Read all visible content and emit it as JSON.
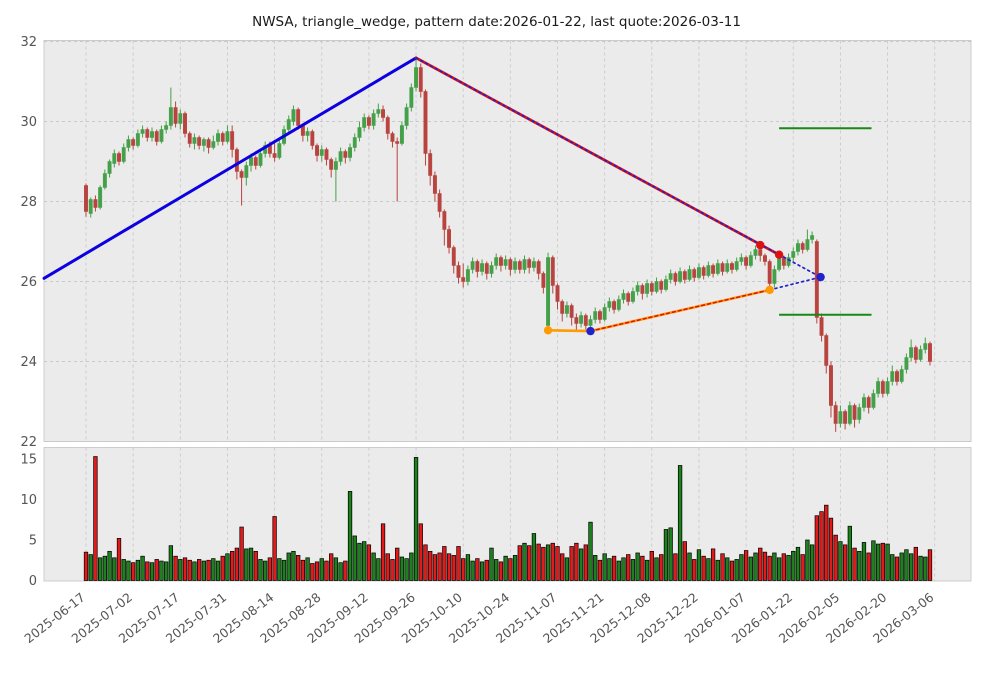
{
  "title": "NWSA, triangle_wedge, pattern date:2026-01-22, last quote:2026-03-11",
  "symbol": "NWSA",
  "pattern_name": "triangle_wedge",
  "pattern_date": "2026-01-22",
  "last_quote_date": "2026-03-11",
  "colors": {
    "figure_bg": "#ffffff",
    "panel_bg": "#ebebeb",
    "grid": "#c9c9c9",
    "panel_border": "#cccccc",
    "candle_up": "#44a049",
    "candle_down": "#b8433f",
    "volume_up": "#1c801c",
    "volume_down": "#e41a1a",
    "volume_edge": "#000000",
    "trend_blue": "#0d00e0",
    "wedge_red": "#dd1111",
    "wedge_orange": "#ff9a00",
    "projection_blue": "#2222cc",
    "target_green": "#158a15",
    "tick_text": "#555555",
    "title_text": "#1a1a1a"
  },
  "chart_data": {
    "type": "candlestick+volume",
    "title": "NWSA, triangle_wedge, pattern date:2026-01-22, last quote:2026-03-11",
    "price_axis": {
      "min": 22,
      "max": 32,
      "ticks": [
        22,
        24,
        26,
        28,
        30,
        32
      ]
    },
    "volume_axis": {
      "min": 0,
      "max": 15,
      "ticks": [
        0,
        5,
        10,
        15
      ]
    },
    "x_tick_labels": [
      "2025-06-17",
      "2025-07-02",
      "2025-07-17",
      "2025-07-31",
      "2025-08-14",
      "2025-08-28",
      "2025-09-12",
      "2025-09-26",
      "2025-10-10",
      "2025-10-24",
      "2025-11-07",
      "2025-11-21",
      "2025-12-08",
      "2025-12-22",
      "2026-01-07",
      "2026-01-22",
      "2026-02-05",
      "2026-02-20",
      "2026-03-06"
    ],
    "x_tick_indices": [
      0,
      10,
      20,
      30,
      40,
      50,
      60,
      70,
      80,
      90,
      100,
      110,
      120,
      130,
      140,
      150,
      160,
      170,
      180
    ],
    "candles": [
      [
        28.4,
        28.45,
        27.62,
        27.75
      ],
      [
        27.7,
        28.1,
        27.6,
        28.05
      ],
      [
        28.05,
        28.15,
        27.75,
        27.85
      ],
      [
        27.85,
        28.4,
        27.8,
        28.35
      ],
      [
        28.35,
        28.8,
        28.3,
        28.7
      ],
      [
        28.7,
        29.05,
        28.6,
        29.0
      ],
      [
        28.95,
        29.3,
        28.85,
        29.2
      ],
      [
        29.2,
        29.25,
        28.9,
        29.0
      ],
      [
        29.0,
        29.45,
        28.95,
        29.35
      ],
      [
        29.35,
        29.65,
        29.25,
        29.55
      ],
      [
        29.55,
        29.6,
        29.3,
        29.4
      ],
      [
        29.4,
        29.8,
        29.35,
        29.7
      ],
      [
        29.7,
        29.9,
        29.6,
        29.8
      ],
      [
        29.8,
        29.85,
        29.5,
        29.6
      ],
      [
        29.6,
        29.85,
        29.5,
        29.75
      ],
      [
        29.75,
        29.8,
        29.4,
        29.5
      ],
      [
        29.5,
        29.9,
        29.45,
        29.8
      ],
      [
        29.8,
        30.0,
        29.7,
        29.9
      ],
      [
        29.9,
        30.85,
        29.8,
        30.35
      ],
      [
        30.35,
        30.5,
        29.85,
        29.95
      ],
      [
        29.95,
        30.3,
        29.8,
        30.2
      ],
      [
        30.2,
        30.25,
        29.6,
        29.7
      ],
      [
        29.7,
        29.75,
        29.35,
        29.45
      ],
      [
        29.45,
        29.7,
        29.3,
        29.6
      ],
      [
        29.6,
        29.65,
        29.3,
        29.4
      ],
      [
        29.4,
        29.6,
        29.25,
        29.55
      ],
      [
        29.55,
        29.6,
        29.2,
        29.35
      ],
      [
        29.35,
        29.65,
        29.3,
        29.5
      ],
      [
        29.5,
        29.8,
        29.4,
        29.7
      ],
      [
        29.7,
        29.75,
        29.4,
        29.5
      ],
      [
        29.5,
        29.9,
        29.45,
        29.75
      ],
      [
        29.75,
        29.9,
        29.1,
        29.3
      ],
      [
        29.3,
        29.35,
        28.55,
        28.75
      ],
      [
        28.75,
        28.8,
        27.9,
        28.6
      ],
      [
        28.6,
        29.0,
        28.4,
        28.9
      ],
      [
        28.9,
        29.2,
        28.75,
        29.1
      ],
      [
        29.1,
        29.15,
        28.8,
        28.9
      ],
      [
        28.9,
        29.3,
        28.85,
        29.2
      ],
      [
        29.2,
        29.5,
        29.1,
        29.4
      ],
      [
        29.4,
        29.5,
        29.1,
        29.2
      ],
      [
        29.2,
        29.45,
        29.0,
        29.1
      ],
      [
        29.1,
        29.55,
        29.05,
        29.45
      ],
      [
        29.45,
        29.9,
        29.4,
        29.8
      ],
      [
        29.8,
        30.15,
        29.7,
        30.05
      ],
      [
        30.0,
        30.4,
        29.9,
        30.3
      ],
      [
        30.3,
        30.35,
        29.8,
        29.9
      ],
      [
        29.9,
        29.95,
        29.5,
        29.65
      ],
      [
        29.65,
        29.85,
        29.5,
        29.75
      ],
      [
        29.75,
        29.8,
        29.3,
        29.4
      ],
      [
        29.4,
        29.45,
        29.0,
        29.15
      ],
      [
        29.15,
        29.4,
        29.0,
        29.3
      ],
      [
        29.3,
        29.35,
        28.9,
        29.05
      ],
      [
        29.05,
        29.1,
        28.6,
        28.8
      ],
      [
        28.8,
        29.1,
        28.0,
        29.0
      ],
      [
        29.0,
        29.35,
        28.9,
        29.25
      ],
      [
        29.25,
        29.3,
        28.95,
        29.1
      ],
      [
        29.1,
        29.45,
        29.0,
        29.35
      ],
      [
        29.35,
        29.7,
        29.25,
        29.6
      ],
      [
        29.6,
        30.0,
        29.5,
        29.85
      ],
      [
        29.85,
        30.2,
        29.75,
        30.1
      ],
      [
        30.1,
        30.15,
        29.8,
        29.9
      ],
      [
        29.9,
        30.3,
        29.8,
        30.2
      ],
      [
        30.2,
        30.45,
        30.1,
        30.3
      ],
      [
        30.3,
        30.4,
        30.0,
        30.1
      ],
      [
        30.1,
        30.15,
        29.55,
        29.7
      ],
      [
        29.7,
        29.75,
        29.35,
        29.5
      ],
      [
        29.5,
        29.6,
        28.0,
        29.45
      ],
      [
        29.45,
        30.0,
        29.4,
        29.9
      ],
      [
        29.9,
        30.45,
        29.8,
        30.35
      ],
      [
        30.35,
        30.95,
        30.25,
        30.85
      ],
      [
        30.85,
        31.59,
        30.75,
        31.35
      ],
      [
        31.35,
        31.45,
        30.6,
        30.75
      ],
      [
        30.75,
        30.8,
        28.9,
        29.2
      ],
      [
        29.2,
        29.3,
        28.4,
        28.65
      ],
      [
        28.65,
        28.75,
        28.0,
        28.2
      ],
      [
        28.2,
        28.3,
        27.6,
        27.75
      ],
      [
        27.75,
        27.8,
        26.9,
        27.3
      ],
      [
        27.3,
        27.4,
        26.7,
        26.85
      ],
      [
        26.85,
        26.9,
        26.2,
        26.4
      ],
      [
        26.4,
        26.5,
        25.95,
        26.1
      ],
      [
        26.1,
        26.45,
        25.85,
        26.0
      ],
      [
        26.0,
        26.4,
        25.9,
        26.3
      ],
      [
        26.3,
        26.6,
        26.2,
        26.5
      ],
      [
        26.5,
        26.55,
        26.1,
        26.25
      ],
      [
        26.25,
        26.55,
        26.15,
        26.45
      ],
      [
        26.45,
        26.5,
        26.05,
        26.2
      ],
      [
        26.2,
        26.5,
        26.1,
        26.4
      ],
      [
        26.4,
        26.7,
        26.3,
        26.6
      ],
      [
        26.6,
        26.65,
        26.25,
        26.4
      ],
      [
        26.4,
        26.65,
        26.3,
        26.55
      ],
      [
        26.55,
        26.6,
        26.15,
        26.3
      ],
      [
        26.3,
        26.6,
        26.2,
        26.5
      ],
      [
        26.5,
        26.55,
        26.2,
        26.3
      ],
      [
        26.3,
        26.65,
        26.2,
        26.55
      ],
      [
        26.55,
        26.6,
        26.2,
        26.35
      ],
      [
        26.35,
        26.6,
        26.25,
        26.5
      ],
      [
        26.5,
        26.55,
        26.05,
        26.2
      ],
      [
        26.2,
        26.25,
        25.7,
        25.85
      ],
      [
        24.9,
        26.72,
        24.78,
        26.6
      ],
      [
        26.6,
        26.65,
        25.7,
        25.9
      ],
      [
        25.9,
        25.95,
        25.3,
        25.5
      ],
      [
        25.5,
        25.55,
        25.0,
        25.2
      ],
      [
        25.2,
        25.5,
        25.1,
        25.4
      ],
      [
        25.4,
        25.45,
        24.9,
        25.1
      ],
      [
        25.1,
        25.2,
        24.8,
        24.95
      ],
      [
        24.95,
        25.25,
        24.85,
        25.15
      ],
      [
        25.15,
        25.2,
        24.8,
        24.9
      ],
      [
        24.9,
        25.15,
        24.76,
        25.05
      ],
      [
        25.05,
        25.35,
        24.95,
        25.25
      ],
      [
        25.25,
        25.3,
        24.95,
        25.05
      ],
      [
        25.05,
        25.45,
        25.0,
        25.35
      ],
      [
        25.35,
        25.6,
        25.25,
        25.5
      ],
      [
        25.5,
        25.55,
        25.2,
        25.3
      ],
      [
        25.3,
        25.65,
        25.25,
        25.55
      ],
      [
        25.55,
        25.8,
        25.45,
        25.7
      ],
      [
        25.7,
        25.75,
        25.4,
        25.5
      ],
      [
        25.5,
        25.85,
        25.45,
        25.75
      ],
      [
        25.75,
        26.0,
        25.65,
        25.9
      ],
      [
        25.9,
        25.95,
        25.55,
        25.7
      ],
      [
        25.7,
        26.05,
        25.6,
        25.95
      ],
      [
        25.95,
        26.0,
        25.65,
        25.75
      ],
      [
        25.75,
        26.1,
        25.7,
        26.0
      ],
      [
        26.0,
        26.05,
        25.7,
        25.8
      ],
      [
        25.8,
        26.15,
        25.75,
        26.05
      ],
      [
        26.05,
        26.3,
        25.95,
        26.2
      ],
      [
        26.2,
        26.25,
        25.9,
        26.0
      ],
      [
        26.0,
        26.35,
        25.95,
        26.25
      ],
      [
        26.25,
        26.3,
        25.95,
        26.05
      ],
      [
        26.05,
        26.4,
        26.0,
        26.3
      ],
      [
        26.3,
        26.35,
        26.0,
        26.1
      ],
      [
        26.1,
        26.45,
        26.05,
        26.35
      ],
      [
        26.35,
        26.4,
        26.05,
        26.15
      ],
      [
        26.15,
        26.5,
        26.1,
        26.4
      ],
      [
        26.4,
        26.45,
        26.1,
        26.2
      ],
      [
        26.2,
        26.55,
        26.15,
        26.45
      ],
      [
        26.45,
        26.5,
        26.15,
        26.25
      ],
      [
        26.25,
        26.55,
        26.2,
        26.45
      ],
      [
        26.45,
        26.5,
        26.2,
        26.3
      ],
      [
        26.3,
        26.6,
        26.25,
        26.5
      ],
      [
        26.5,
        26.7,
        26.4,
        26.6
      ],
      [
        26.6,
        26.65,
        26.3,
        26.4
      ],
      [
        26.4,
        26.75,
        26.35,
        26.65
      ],
      [
        26.65,
        26.9,
        26.55,
        26.8
      ],
      [
        26.8,
        26.91,
        26.5,
        26.65
      ],
      [
        26.65,
        26.7,
        26.4,
        26.5
      ],
      [
        26.5,
        26.55,
        25.79,
        25.95
      ],
      [
        25.95,
        26.4,
        25.85,
        26.3
      ],
      [
        26.3,
        26.67,
        26.25,
        26.6
      ],
      [
        26.6,
        26.65,
        26.3,
        26.4
      ],
      [
        26.4,
        26.7,
        26.35,
        26.6
      ],
      [
        26.6,
        26.85,
        26.5,
        26.75
      ],
      [
        26.75,
        27.05,
        26.65,
        26.95
      ],
      [
        26.95,
        27.0,
        26.7,
        26.8
      ],
      [
        26.8,
        27.3,
        26.75,
        27.05
      ],
      [
        27.05,
        27.25,
        26.95,
        27.15
      ],
      [
        27.0,
        27.05,
        24.95,
        25.1
      ],
      [
        25.1,
        25.2,
        24.5,
        24.65
      ],
      [
        24.65,
        24.7,
        23.7,
        23.9
      ],
      [
        23.9,
        24.0,
        22.6,
        22.9
      ],
      [
        22.9,
        23.0,
        22.24,
        22.45
      ],
      [
        22.45,
        22.9,
        22.35,
        22.75
      ],
      [
        22.75,
        22.8,
        22.3,
        22.45
      ],
      [
        22.45,
        23.0,
        22.4,
        22.9
      ],
      [
        22.9,
        22.95,
        22.35,
        22.55
      ],
      [
        22.55,
        22.95,
        22.45,
        22.85
      ],
      [
        22.85,
        23.2,
        22.75,
        23.1
      ],
      [
        23.1,
        23.15,
        22.7,
        22.85
      ],
      [
        22.85,
        23.3,
        22.8,
        23.2
      ],
      [
        23.2,
        23.6,
        23.1,
        23.5
      ],
      [
        23.5,
        23.55,
        23.1,
        23.2
      ],
      [
        23.2,
        23.6,
        23.15,
        23.5
      ],
      [
        23.5,
        23.9,
        23.4,
        23.75
      ],
      [
        23.75,
        23.8,
        23.4,
        23.5
      ],
      [
        23.5,
        23.9,
        23.45,
        23.8
      ],
      [
        23.8,
        24.2,
        23.7,
        24.1
      ],
      [
        24.1,
        24.55,
        24.0,
        24.35
      ],
      [
        24.35,
        24.4,
        23.95,
        24.05
      ],
      [
        24.05,
        24.4,
        24.0,
        24.3
      ],
      [
        24.3,
        24.6,
        24.2,
        24.45
      ],
      [
        24.45,
        24.5,
        23.9,
        24.0
      ]
    ],
    "volumes": [
      3.5,
      3.2,
      15.3,
      2.8,
      3.0,
      3.6,
      2.8,
      5.2,
      2.6,
      2.4,
      2.2,
      2.5,
      3.0,
      2.3,
      2.2,
      2.6,
      2.4,
      2.3,
      4.3,
      3.0,
      2.6,
      2.8,
      2.5,
      2.3,
      2.6,
      2.4,
      2.5,
      2.7,
      2.4,
      3.0,
      3.3,
      3.6,
      4.0,
      6.6,
      3.9,
      4.0,
      3.6,
      2.6,
      2.4,
      2.8,
      7.9,
      2.7,
      2.5,
      3.4,
      3.6,
      3.1,
      2.5,
      2.8,
      2.1,
      2.3,
      2.7,
      2.4,
      3.3,
      2.8,
      2.2,
      2.4,
      11.0,
      5.5,
      4.6,
      4.8,
      4.4,
      3.4,
      2.7,
      7.0,
      3.3,
      2.6,
      4.0,
      2.9,
      2.7,
      3.4,
      15.2,
      7.0,
      4.4,
      3.6,
      3.2,
      3.4,
      4.2,
      3.3,
      3.1,
      4.2,
      2.7,
      3.2,
      2.4,
      2.7,
      2.3,
      2.5,
      4.0,
      2.6,
      2.3,
      3.0,
      2.7,
      3.1,
      4.3,
      4.6,
      4.3,
      5.8,
      4.5,
      4.1,
      4.4,
      4.6,
      4.2,
      3.3,
      2.8,
      4.2,
      4.6,
      3.9,
      4.4,
      7.2,
      3.1,
      2.5,
      3.3,
      2.7,
      3.0,
      2.4,
      2.8,
      3.2,
      2.6,
      3.4,
      3.0,
      2.5,
      3.6,
      2.8,
      3.2,
      6.3,
      6.5,
      3.3,
      14.2,
      4.8,
      3.4,
      2.6,
      3.8,
      3.0,
      2.7,
      3.9,
      2.5,
      3.3,
      2.8,
      2.4,
      2.6,
      3.2,
      3.7,
      2.9,
      3.4,
      4.0,
      3.5,
      3.0,
      3.4,
      2.8,
      3.3,
      3.1,
      3.6,
      4.1,
      3.2,
      5.0,
      4.4,
      8.0,
      8.5,
      9.3,
      7.7,
      5.6,
      4.8,
      4.4,
      6.7,
      4.0,
      3.6,
      4.7,
      3.4,
      4.9,
      4.5,
      4.6,
      4.5,
      3.2,
      2.9,
      3.4,
      3.8,
      3.3,
      4.1,
      3.0,
      2.9,
      3.8
    ],
    "overlays": {
      "uptrend_line": {
        "points": [
          [
            -8.9,
            26.08
          ],
          [
            70,
            31.59
          ]
        ]
      },
      "wedge_upper_line": {
        "points": [
          [
            70,
            31.59
          ],
          [
            147,
            26.67
          ]
        ]
      },
      "wedge_upper_projection_dotted": {
        "points": [
          [
            70,
            31.59
          ],
          [
            155.8,
            26.11
          ]
        ]
      },
      "wedge_lower_line": {
        "points": [
          [
            98,
            24.78
          ],
          [
            107,
            24.76
          ],
          [
            145,
            25.79
          ]
        ]
      },
      "wedge_lower_fit_dashed": {
        "points": [
          [
            107,
            24.76
          ],
          [
            145,
            25.79
          ]
        ]
      },
      "wedge_lower_projection_dotted": {
        "points": [
          [
            145,
            25.79
          ],
          [
            155.8,
            26.11
          ]
        ]
      },
      "pivot_dots": [
        {
          "i": 143,
          "price": 26.91,
          "color_key": "wedge_red"
        },
        {
          "i": 147,
          "price": 26.67,
          "color_key": "wedge_red"
        },
        {
          "i": 98,
          "price": 24.78,
          "color_key": "wedge_orange"
        },
        {
          "i": 145,
          "price": 25.79,
          "color_key": "wedge_orange"
        },
        {
          "i": 107,
          "price": 24.76,
          "color_key": "projection_blue"
        },
        {
          "i": 155.8,
          "price": 26.11,
          "color_key": "projection_blue"
        }
      ],
      "target_lines": [
        {
          "price": 29.83,
          "from_i": 147,
          "to_i": 166.6
        },
        {
          "price": 25.17,
          "from_i": 147,
          "to_i": 166.6
        }
      ]
    }
  }
}
